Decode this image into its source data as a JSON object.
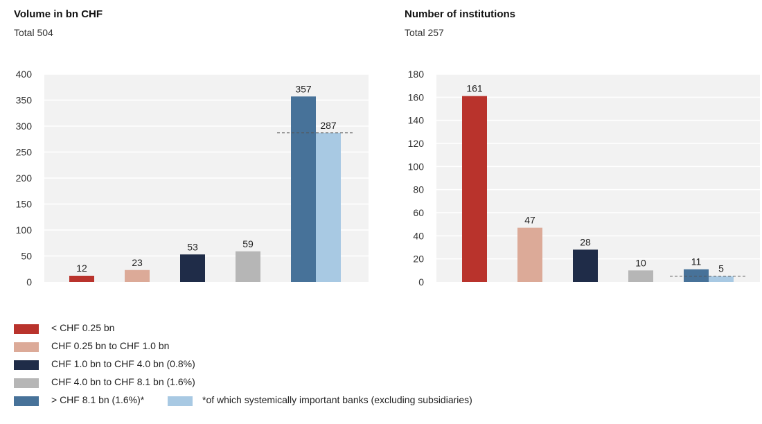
{
  "chart_data": [
    {
      "type": "bar",
      "title": "Volume in bn CHF",
      "subtitle": "Total 504",
      "categories": [
        "< CHF 0.25 bn",
        "CHF 0.25 bn to CHF 1.0 bn",
        "CHF 1.0 bn to CHF 4.0 bn (0.8%)",
        "CHF 4.0 bn to CHF 8.1 bn (1.6%)",
        "> CHF 8.1 bn (1.6%)*"
      ],
      "values": [
        12,
        23,
        53,
        59,
        357
      ],
      "sub_bar": {
        "category_index": 4,
        "label": "*of which systemically important banks (excluding subsidiaries)",
        "value": 287
      },
      "ylim": [
        0,
        400
      ],
      "yticks": [
        0,
        50,
        100,
        150,
        200,
        250,
        300,
        350,
        400
      ],
      "grid": true,
      "xlabel": "",
      "ylabel": ""
    },
    {
      "type": "bar",
      "title": "Number of institutions",
      "subtitle": "Total 257",
      "categories": [
        "< CHF 0.25 bn",
        "CHF 0.25 bn to CHF 1.0 bn",
        "CHF 1.0 bn to CHF 4.0 bn (0.8%)",
        "CHF 4.0 bn to CHF 8.1 bn (1.6%)",
        "> CHF 8.1 bn (1.6%)*"
      ],
      "values": [
        161,
        47,
        28,
        10,
        11
      ],
      "sub_bar": {
        "category_index": 4,
        "label": "*of which systemically important banks (excluding subsidiaries)",
        "value": 5
      },
      "ylim": [
        0,
        180
      ],
      "yticks": [
        0,
        20,
        40,
        60,
        80,
        100,
        120,
        140,
        160,
        180
      ],
      "grid": true,
      "xlabel": "",
      "ylabel": ""
    }
  ],
  "colors": [
    "#b9332c",
    "#dcaa98",
    "#1f2c48",
    "#b6b6b6",
    "#477299",
    "#a8c9e3"
  ],
  "legend": [
    {
      "label": "< CHF 0.25 bn",
      "color": "#b9332c"
    },
    {
      "label": "CHF 0.25 bn to CHF 1.0 bn",
      "color": "#dcaa98"
    },
    {
      "label": "CHF 1.0 bn to CHF 4.0 bn (0.8%)",
      "color": "#1f2c48"
    },
    {
      "label": "CHF 4.0 bn to CHF 8.1 bn (1.6%)",
      "color": "#b6b6b6"
    },
    {
      "label": "> CHF 8.1 bn (1.6%)*",
      "color": "#477299"
    },
    {
      "label": "*of which systemically important banks (excluding subsidiaries)",
      "color": "#a8c9e3"
    }
  ],
  "legend_placement": "bottom-left"
}
